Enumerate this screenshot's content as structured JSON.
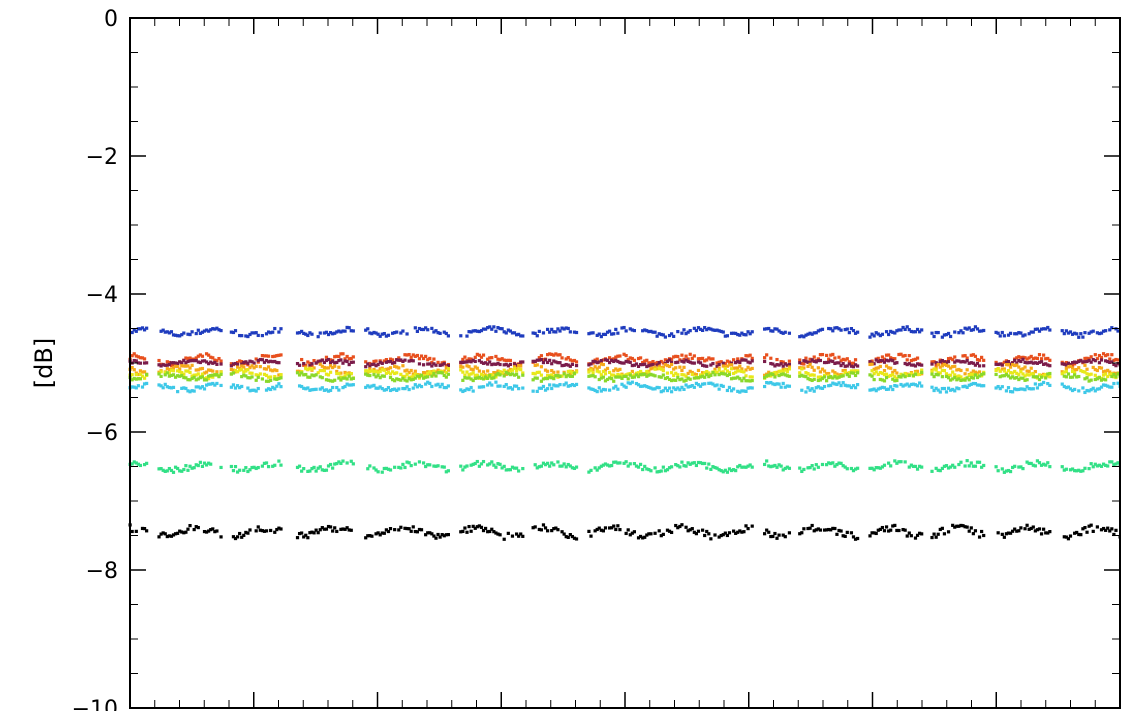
{
  "chart_data": {
    "type": "scatter",
    "title": "",
    "ylabel": "[dB]",
    "xlabel": "",
    "ylim": [
      -10,
      0
    ],
    "xlim": [
      0,
      1
    ],
    "yticks": [
      0,
      -2,
      -4,
      -6,
      -8,
      -10
    ],
    "ytick_labels": [
      "0",
      "−2",
      "−4",
      "−6",
      "−8",
      "−10"
    ],
    "grid": false,
    "legend": "none",
    "gap_ranges": [
      [
        0.018,
        0.028
      ],
      [
        0.093,
        0.101
      ],
      [
        0.154,
        0.168
      ],
      [
        0.226,
        0.236
      ],
      [
        0.322,
        0.332
      ],
      [
        0.398,
        0.406
      ],
      [
        0.452,
        0.462
      ],
      [
        0.63,
        0.64
      ],
      [
        0.668,
        0.676
      ],
      [
        0.735,
        0.746
      ],
      [
        0.8,
        0.81
      ],
      [
        0.864,
        0.874
      ],
      [
        0.93,
        0.94
      ]
    ],
    "series": [
      {
        "color": "#1f3cbe",
        "level": -4.55,
        "amplitude": 0.07
      },
      {
        "color": "#e8501e",
        "level": -4.95,
        "amplitude": 0.08
      },
      {
        "color": "#7a1c4a",
        "level": -5.0,
        "amplitude": 0.05
      },
      {
        "color": "#f6a81a",
        "level": -5.1,
        "amplitude": 0.08
      },
      {
        "color": "#e8e81a",
        "level": -5.15,
        "amplitude": 0.07
      },
      {
        "color": "#8ad82a",
        "level": -5.2,
        "amplitude": 0.06
      },
      {
        "color": "#3ec8e8",
        "level": -5.35,
        "amplitude": 0.07
      },
      {
        "color": "#32e086",
        "level": -6.5,
        "amplitude": 0.08
      },
      {
        "color": "#000000",
        "level": -7.45,
        "amplitude": 0.1
      }
    ]
  }
}
